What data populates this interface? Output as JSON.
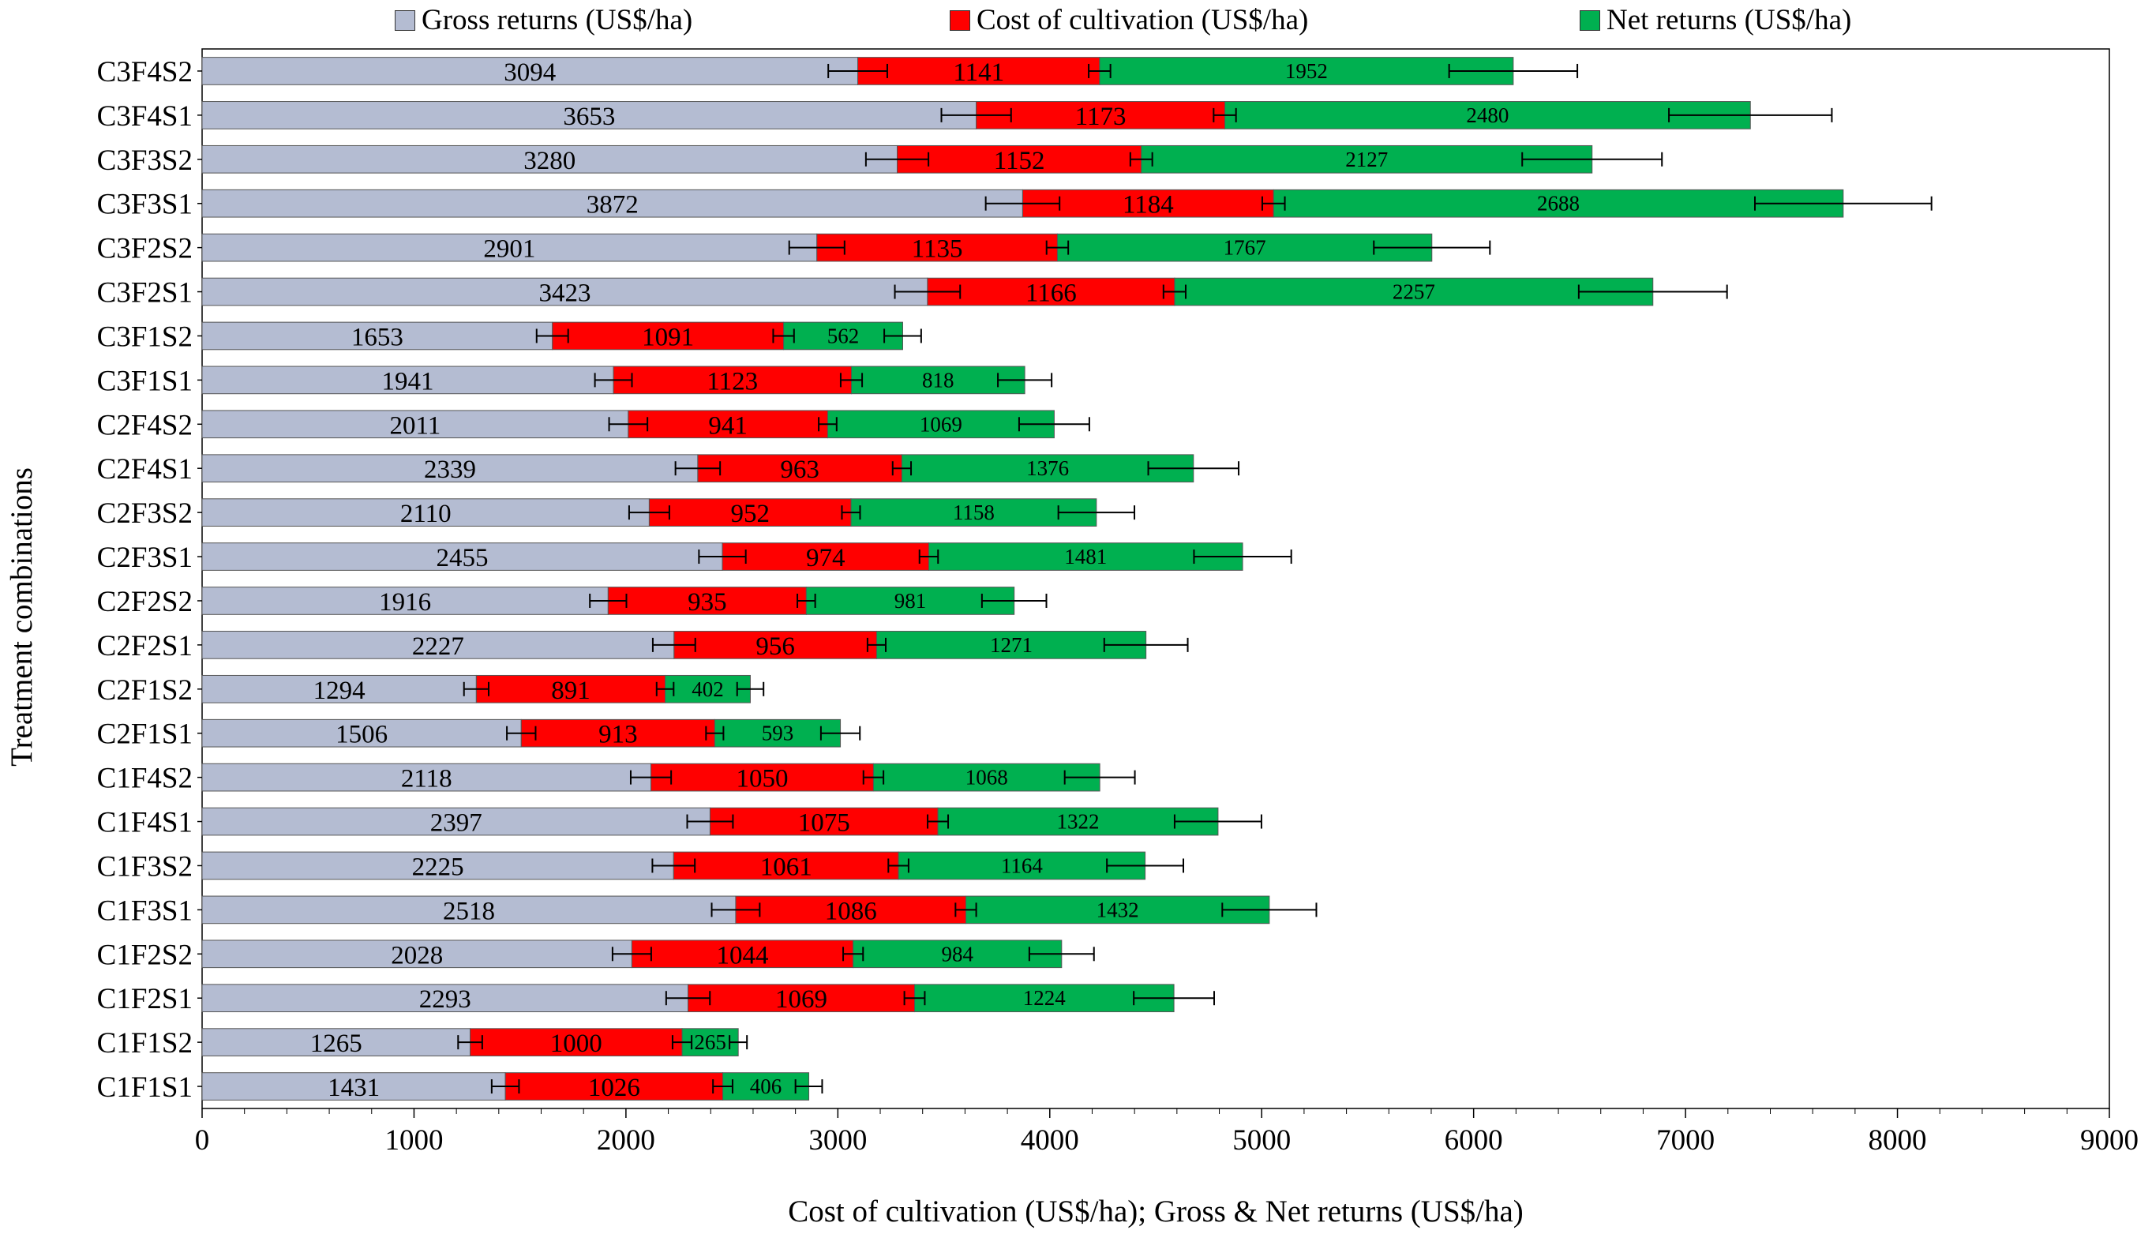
{
  "chart_data": {
    "type": "bar",
    "orientation": "horizontal",
    "stacked": true,
    "title": "",
    "xlabel": "Cost of cultivation (US$/ha); Gross & Net returns (US$/ha)",
    "ylabel": "Treatment combinations",
    "xlim": [
      0,
      9000
    ],
    "xticks": [
      "0",
      "1000",
      "2000",
      "3000",
      "4000",
      "5000",
      "6000",
      "7000",
      "8000",
      "9000"
    ],
    "legend_position": "top",
    "categories": [
      "C3F4S2",
      "C3F4S1",
      "C3F3S2",
      "C3F3S1",
      "C3F2S2",
      "C3F2S1",
      "C3F1S2",
      "C3F1S1",
      "C2F4S2",
      "C2F4S1",
      "C2F3S2",
      "C2F3S1",
      "C2F2S2",
      "C2F2S1",
      "C2F1S2",
      "C2F1S1",
      "C1F4S2",
      "C1F4S1",
      "C1F3S2",
      "C1F3S1",
      "C1F2S2",
      "C1F2S1",
      "C1F1S2",
      "C1F1S1"
    ],
    "series": [
      {
        "name": "Gross returns (US$/ha)",
        "color": "#b4bcd2",
        "label_color": "#000000",
        "values": [
          3094,
          3653,
          3280,
          3872,
          2901,
          3423,
          1653,
          1941,
          2011,
          2339,
          2110,
          2455,
          1916,
          2227,
          1294,
          1506,
          2118,
          2397,
          2225,
          2518,
          2028,
          2293,
          1265,
          1431
        ]
      },
      {
        "name": "Cost of cultivation (US$/ha)",
        "color": "#ff0000",
        "label_color": "#000000",
        "values": [
          1141,
          1173,
          1152,
          1184,
          1135,
          1166,
          1091,
          1123,
          941,
          963,
          952,
          974,
          935,
          956,
          891,
          913,
          1050,
          1075,
          1061,
          1086,
          1044,
          1069,
          1000,
          1026
        ]
      },
      {
        "name": "Net returns (US$/ha)",
        "color": "#00b050",
        "label_color": "#000000",
        "values": [
          1952,
          2480,
          2127,
          2688,
          1767,
          2257,
          562,
          818,
          1069,
          1376,
          1158,
          1481,
          981,
          1271,
          402,
          593,
          1068,
          1322,
          1164,
          1432,
          984,
          1224,
          265,
          406
        ]
      }
    ],
    "error_bars": true
  }
}
